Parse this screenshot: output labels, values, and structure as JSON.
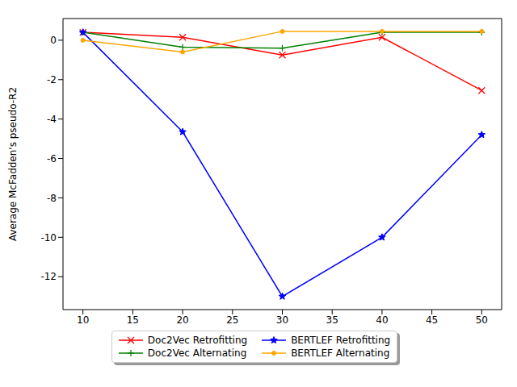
{
  "chart_data": {
    "type": "line",
    "y_label": "Average McFadden's pseudo-R2",
    "x": [
      10,
      20,
      30,
      40,
      50
    ],
    "xlim": [
      8,
      52
    ],
    "xticks": [
      10,
      15,
      20,
      25,
      30,
      35,
      40,
      45,
      50
    ],
    "ylim": [
      -13.67,
      1.1
    ],
    "yticks": [
      -12,
      -10,
      -8,
      -6,
      -4,
      -2,
      0
    ],
    "grid": false,
    "legend": "bottom",
    "series": [
      {
        "name": "Doc2Vec Retrofitting",
        "color": "#ff0000",
        "marker": "x",
        "values": [
          0.4,
          0.15,
          -0.75,
          0.15,
          -2.55
        ]
      },
      {
        "name": "Doc2Vec Alternating",
        "color": "#008000",
        "marker": "plus",
        "values": [
          0.4,
          -0.35,
          -0.4,
          0.4,
          0.4
        ]
      },
      {
        "name": "BERTLEF Retrofitting",
        "color": "#0000ff",
        "marker": "star",
        "values": [
          0.4,
          -4.65,
          -13.0,
          -10.0,
          -4.8
        ]
      },
      {
        "name": "BERTLEF Alternating",
        "color": "#ffa500",
        "marker": "circle",
        "values": [
          0.0,
          -0.6,
          0.45,
          0.45,
          0.45
        ]
      }
    ]
  }
}
